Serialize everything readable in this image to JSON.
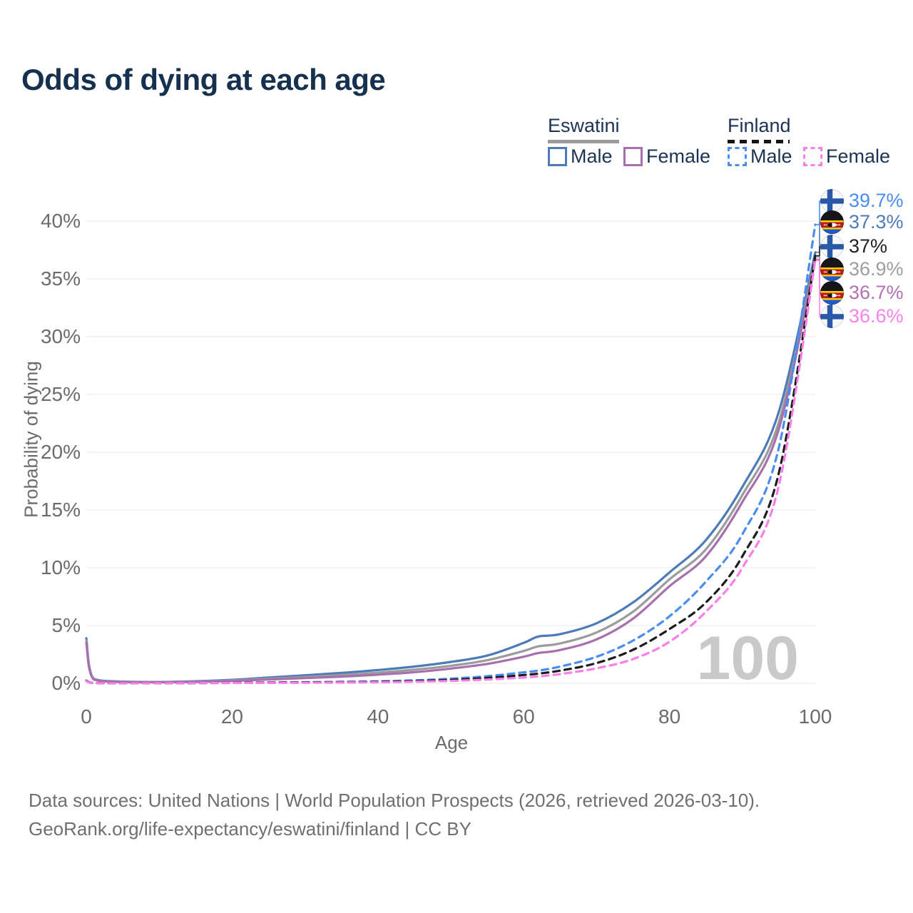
{
  "title": "Odds of dying at each age",
  "legend": {
    "groups": [
      {
        "label": "Eswatini",
        "line_style": "solid",
        "underline_color": "#9b9b9b"
      },
      {
        "label": "Finland",
        "line_style": "dashed",
        "underline_color": "#141414"
      }
    ],
    "items": [
      {
        "label": "Male",
        "color": "#4d7ab8",
        "dashed": false
      },
      {
        "label": "Female",
        "color": "#a76fae",
        "dashed": false
      },
      {
        "label": "Male",
        "color": "#4a8df2",
        "dashed": true
      },
      {
        "label": "Female",
        "color": "#fb7ee8",
        "dashed": true
      }
    ]
  },
  "chart_data": {
    "type": "line",
    "title": "Odds of dying at each age",
    "xlabel": "Age",
    "ylabel": "Probability of dying",
    "xlim": [
      0,
      100
    ],
    "ylim": [
      0,
      41
    ],
    "xticks": [
      0,
      20,
      40,
      60,
      80,
      100
    ],
    "ytick_values": [
      0,
      5,
      10,
      15,
      20,
      25,
      30,
      35,
      40
    ],
    "ytick_labels": [
      "0%",
      "5%",
      "10%",
      "15%",
      "20%",
      "25%",
      "30%",
      "35%",
      "40%"
    ],
    "grid": "horizontal",
    "legend_position": "top-right",
    "age_cursor": "100",
    "x": [
      0,
      1,
      5,
      10,
      15,
      20,
      25,
      30,
      35,
      40,
      45,
      50,
      55,
      60,
      62,
      65,
      70,
      75,
      80,
      85,
      90,
      95,
      100
    ],
    "series": [
      {
        "name": "Eswatini Male",
        "country": "Eswatini",
        "sex": "Male",
        "flag": "eswatini",
        "color": "#4d7ab8",
        "dashed": false,
        "end_label": "37.3%",
        "end_label_color": "#4f7ab9",
        "values": [
          3.9,
          0.4,
          0.15,
          0.12,
          0.18,
          0.3,
          0.5,
          0.7,
          0.9,
          1.15,
          1.45,
          1.85,
          2.4,
          3.5,
          4.05,
          4.25,
          5.2,
          7.0,
          9.6,
          12.4,
          17.0,
          23.5,
          37.3
        ]
      },
      {
        "name": "Eswatini Both sexes",
        "country": "Eswatini",
        "sex": "Both",
        "flag": "eswatini",
        "color": "#9b9b9b",
        "dashed": false,
        "end_label": "36.9%",
        "end_label_color": "#9e9e9e",
        "values": [
          3.7,
          0.37,
          0.13,
          0.11,
          0.15,
          0.25,
          0.4,
          0.55,
          0.72,
          0.92,
          1.18,
          1.52,
          2.0,
          2.8,
          3.2,
          3.45,
          4.4,
          6.2,
          9.0,
          11.6,
          16.3,
          22.6,
          36.9
        ]
      },
      {
        "name": "Eswatini Female",
        "country": "Eswatini",
        "sex": "Female",
        "flag": "eswatini",
        "color": "#a76fae",
        "dashed": false,
        "end_label": "36.7%",
        "end_label_color": "#b370b3",
        "values": [
          3.5,
          0.34,
          0.12,
          0.1,
          0.13,
          0.21,
          0.33,
          0.45,
          0.58,
          0.75,
          0.96,
          1.28,
          1.68,
          2.3,
          2.62,
          2.88,
          3.8,
          5.6,
          8.4,
          11.0,
          15.7,
          22.0,
          36.7
        ]
      },
      {
        "name": "Finland Male",
        "country": "Finland",
        "sex": "Male",
        "flag": "finland",
        "color": "#4a8df2",
        "dashed": true,
        "end_label": "39.7%",
        "end_label_color": "#4a8df2",
        "values": [
          0.25,
          0.03,
          0.01,
          0.01,
          0.03,
          0.06,
          0.08,
          0.1,
          0.13,
          0.17,
          0.26,
          0.4,
          0.62,
          0.95,
          1.1,
          1.45,
          2.3,
          3.7,
          5.8,
          8.8,
          12.9,
          20.4,
          39.7
        ]
      },
      {
        "name": "Finland Both sexes",
        "country": "Finland",
        "sex": "Both",
        "flag": "finland",
        "color": "#1c1c1c",
        "dashed": true,
        "end_label": "37%",
        "end_label_color": "#222222",
        "values": [
          0.22,
          0.02,
          0.01,
          0.01,
          0.02,
          0.04,
          0.06,
          0.08,
          0.1,
          0.13,
          0.2,
          0.3,
          0.47,
          0.72,
          0.84,
          1.1,
          1.75,
          2.9,
          4.7,
          7.0,
          11.0,
          18.2,
          37.0
        ]
      },
      {
        "name": "Finland Female",
        "country": "Finland",
        "sex": "Female",
        "flag": "finland",
        "color": "#fb7ee8",
        "dashed": true,
        "end_label": "36.6%",
        "end_label_color": "#fb82e9",
        "values": [
          0.2,
          0.02,
          0.01,
          0.01,
          0.02,
          0.03,
          0.04,
          0.05,
          0.07,
          0.09,
          0.14,
          0.21,
          0.33,
          0.5,
          0.6,
          0.8,
          1.3,
          2.1,
          3.6,
          6.2,
          10.0,
          17.1,
          36.6
        ]
      }
    ]
  },
  "axis": {
    "xlabel": "Age",
    "ylabel": "Probability of dying"
  },
  "watermark": "100",
  "footer": {
    "line1": "Data sources: United Nations | World Population Prospects (2026, retrieved 2026-03-10).",
    "line2": "GeoRank.org/life-expectancy/eswatini/finland | CC BY"
  }
}
